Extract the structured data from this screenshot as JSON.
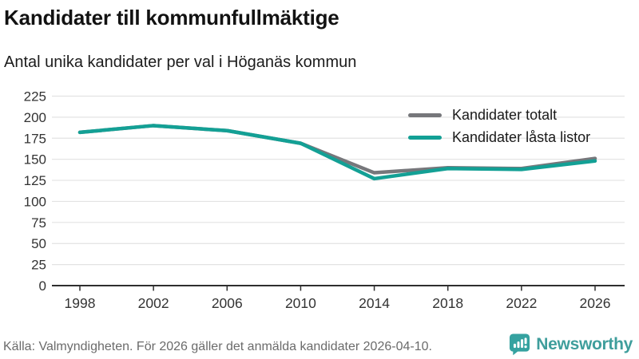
{
  "header": {
    "title": "Kandidater till kommunfullmäktige",
    "subtitle": "Antal unika kandidater per val i Höganäs kommun"
  },
  "colors": {
    "total": "#76777b",
    "locked": "#13a095",
    "grid": "#e3e3e3",
    "axis": "#2e2e2e",
    "tick_text": "#333333",
    "footer_text": "#6b6b6b",
    "brand": "#3f9e9c"
  },
  "chart_data": {
    "type": "line",
    "x": [
      1998,
      2002,
      2006,
      2010,
      2014,
      2018,
      2022,
      2026
    ],
    "series": [
      {
        "name": "Kandidater totalt",
        "color_key": "total",
        "values": [
          182,
          190,
          184,
          169,
          134,
          140,
          139,
          151
        ]
      },
      {
        "name": "Kandidater låsta listor",
        "color_key": "locked",
        "values": [
          182,
          190,
          184,
          169,
          127,
          139,
          138,
          148
        ]
      }
    ],
    "title": "Kandidater till kommunfullmäktige",
    "subtitle": "Antal unika kandidater per val i Höganäs kommun",
    "xlabel": "",
    "ylabel": "",
    "ylim": [
      0,
      225
    ],
    "ytick_step": 25,
    "grid": true,
    "legend_position": "top-right"
  },
  "footer": {
    "source": "Källa: Valmyndigheten. För 2026 gäller det anmälda kandidater 2026-04-10.",
    "brand_name": "Newsworthy"
  }
}
